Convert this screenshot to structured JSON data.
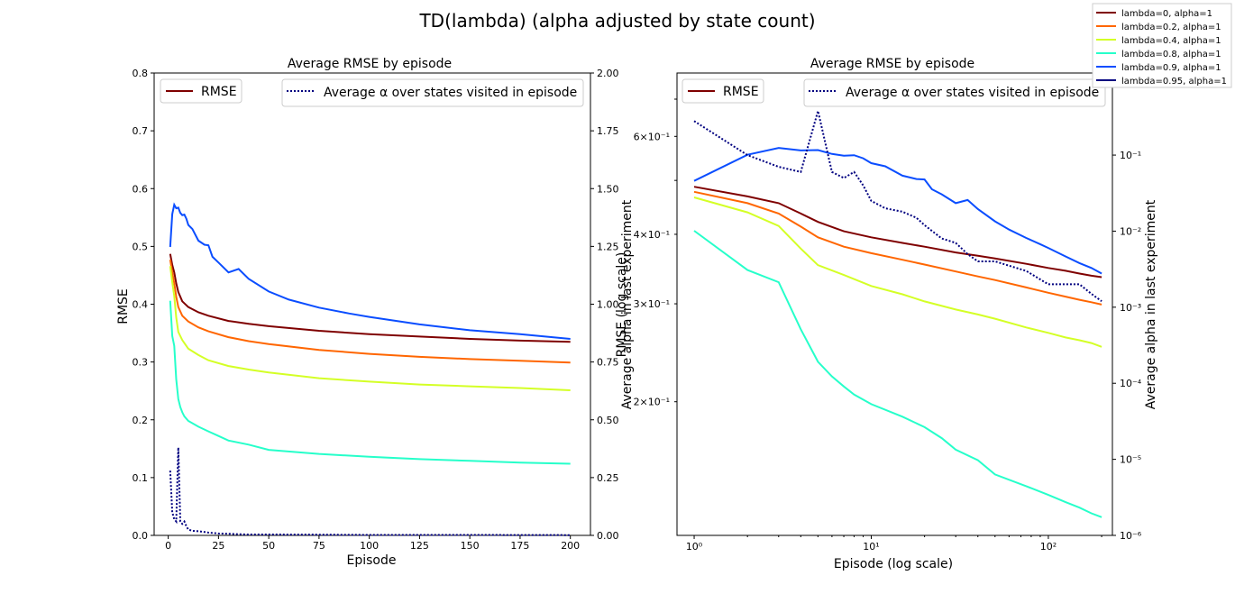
{
  "title": "TD(lambda) (alpha adjusted by state count)",
  "colors": {
    "rmse_legend_line": "#7f0000",
    "alpha_line": "#000080"
  },
  "global_legend": [
    {
      "label": "lambda=0, alpha=1",
      "color": "#7f0000"
    },
    {
      "label": "lambda=0.2, alpha=1",
      "color": "#ff6600"
    },
    {
      "label": "lambda=0.4, alpha=1",
      "color": "#d4ff26"
    },
    {
      "label": "lambda=0.8, alpha=1",
      "color": "#26ffca"
    },
    {
      "label": "lambda=0.9, alpha=1",
      "color": "#0a4dff"
    },
    {
      "label": "lambda=0.95, alpha=1",
      "color": "#000080"
    }
  ],
  "chart_data": [
    {
      "type": "line",
      "title": "Average RMSE by episode",
      "xlabel": "Episode",
      "ylabel": "RMSE",
      "y2label": "Average alpha in last experiment",
      "y2label_overlap": "RMSE (log scale)",
      "xlim": [
        -7,
        210
      ],
      "ylim": [
        0,
        0.8
      ],
      "y2lim": [
        0,
        2.0
      ],
      "xticks": [
        "0",
        "25",
        "50",
        "75",
        "100",
        "125",
        "150",
        "175",
        "200"
      ],
      "yticks": [
        "0.0",
        "0.1",
        "0.2",
        "0.3",
        "0.4",
        "0.5",
        "0.6",
        "0.7",
        "0.8"
      ],
      "y2ticks": [
        "0.00",
        "0.25",
        "0.50",
        "0.75",
        "1.00",
        "1.25",
        "1.50",
        "1.75",
        "2.00"
      ],
      "legend_rmse": "RMSE",
      "legend_alpha": "Average α over states visited in episode",
      "grid": false,
      "series": [
        {
          "name": "lambda=0, alpha=1",
          "color": "#7f0000",
          "x": [
            1,
            2,
            3,
            4,
            5,
            7,
            10,
            15,
            20,
            30,
            40,
            50,
            75,
            100,
            125,
            150,
            175,
            200
          ],
          "y": [
            0.487,
            0.468,
            0.455,
            0.436,
            0.421,
            0.405,
            0.395,
            0.386,
            0.38,
            0.371,
            0.366,
            0.362,
            0.354,
            0.348,
            0.344,
            0.34,
            0.337,
            0.335
          ]
        },
        {
          "name": "lambda=0.2, alpha=1",
          "color": "#ff6600",
          "x": [
            1,
            2,
            3,
            4,
            5,
            7,
            10,
            15,
            20,
            30,
            40,
            50,
            75,
            100,
            125,
            150,
            175,
            200
          ],
          "y": [
            0.477,
            0.455,
            0.436,
            0.413,
            0.395,
            0.38,
            0.37,
            0.36,
            0.353,
            0.343,
            0.336,
            0.331,
            0.321,
            0.314,
            0.309,
            0.305,
            0.302,
            0.299
          ]
        },
        {
          "name": "lambda=0.4, alpha=1",
          "color": "#d4ff26",
          "x": [
            1,
            2,
            3,
            4,
            5,
            7,
            10,
            15,
            20,
            30,
            40,
            50,
            75,
            100,
            125,
            150,
            175,
            200
          ],
          "y": [
            0.466,
            0.438,
            0.414,
            0.377,
            0.352,
            0.338,
            0.323,
            0.312,
            0.303,
            0.293,
            0.287,
            0.282,
            0.272,
            0.266,
            0.261,
            0.258,
            0.255,
            0.251
          ]
        },
        {
          "name": "lambda=0.8, alpha=1",
          "color": "#26ffca",
          "x": [
            1,
            2,
            3,
            4,
            5,
            6,
            7,
            8,
            10,
            15,
            20,
            25,
            30,
            40,
            50,
            75,
            100,
            125,
            150,
            175,
            200
          ],
          "y": [
            0.406,
            0.345,
            0.328,
            0.27,
            0.236,
            0.222,
            0.213,
            0.206,
            0.198,
            0.188,
            0.18,
            0.172,
            0.164,
            0.157,
            0.148,
            0.141,
            0.136,
            0.132,
            0.129,
            0.126,
            0.124
          ]
        },
        {
          "name": "lambda=0.9, alpha=1",
          "color": "#0a4dff",
          "x": [
            1,
            2,
            3,
            4,
            5,
            6,
            7,
            8,
            9,
            10,
            12,
            15,
            18,
            20,
            22,
            25,
            30,
            35,
            40,
            50,
            60,
            75,
            90,
            100,
            125,
            150,
            175,
            200
          ],
          "y": [
            0.499,
            0.556,
            0.572,
            0.566,
            0.567,
            0.558,
            0.554,
            0.555,
            0.548,
            0.537,
            0.53,
            0.51,
            0.503,
            0.502,
            0.482,
            0.472,
            0.455,
            0.461,
            0.444,
            0.422,
            0.408,
            0.394,
            0.384,
            0.378,
            0.365,
            0.355,
            0.348,
            0.34
          ]
        }
      ],
      "alpha_series": {
        "name": "Average α over states visited in episode",
        "color": "#000080",
        "x": [
          1,
          2,
          3,
          4,
          5,
          6,
          7,
          8,
          9,
          10,
          12,
          15,
          18,
          20,
          25,
          30,
          35,
          40,
          50,
          75,
          100,
          125,
          150,
          175,
          200
        ],
        "y": [
          0.28,
          0.1,
          0.07,
          0.06,
          0.38,
          0.06,
          0.05,
          0.06,
          0.04,
          0.025,
          0.02,
          0.018,
          0.015,
          0.012,
          0.008,
          0.007,
          0.005,
          0.004,
          0.004,
          0.003,
          0.002,
          0.002,
          0.002,
          0.0015,
          0.0012
        ]
      }
    },
    {
      "type": "line",
      "title": "Average RMSE by episode",
      "xlabel": "Episode (log scale)",
      "ylabel": "RMSE (log scale)",
      "y2label": "Average alpha in last experiment",
      "xscale": "log",
      "yscale": "log",
      "y2scale": "log",
      "xlim": [
        0.8,
        230
      ],
      "ylim": [
        0.115,
        0.78
      ],
      "y2lim": [
        1e-06,
        1.2
      ],
      "xticks": [
        "10⁰",
        "10¹",
        "10²"
      ],
      "yticks": [
        "2×10⁻¹",
        "3×10⁻¹",
        "4×10⁻¹",
        "6×10⁻¹"
      ],
      "y2ticks": [
        "10⁻⁶",
        "10⁻⁵",
        "10⁻⁴",
        "10⁻³",
        "10⁻²",
        "10⁻¹",
        "10⁰"
      ],
      "legend_rmse": "RMSE",
      "legend_alpha": "Average α over states visited in episode",
      "grid": false,
      "series": [
        {
          "name": "lambda=0, alpha=1",
          "color": "#7f0000",
          "x": [
            1,
            2,
            3,
            4,
            5,
            7,
            10,
            15,
            20,
            30,
            40,
            50,
            75,
            100,
            125,
            150,
            175,
            200
          ],
          "y": [
            0.487,
            0.468,
            0.455,
            0.436,
            0.421,
            0.405,
            0.395,
            0.386,
            0.38,
            0.371,
            0.366,
            0.362,
            0.354,
            0.348,
            0.344,
            0.34,
            0.337,
            0.335
          ]
        },
        {
          "name": "lambda=0.2, alpha=1",
          "color": "#ff6600",
          "x": [
            1,
            2,
            3,
            4,
            5,
            7,
            10,
            15,
            20,
            30,
            40,
            50,
            75,
            100,
            125,
            150,
            175,
            200
          ],
          "y": [
            0.477,
            0.455,
            0.436,
            0.413,
            0.395,
            0.38,
            0.37,
            0.36,
            0.353,
            0.343,
            0.336,
            0.331,
            0.321,
            0.314,
            0.309,
            0.305,
            0.302,
            0.299
          ]
        },
        {
          "name": "lambda=0.4, alpha=1",
          "color": "#d4ff26",
          "x": [
            1,
            2,
            3,
            4,
            5,
            7,
            10,
            15,
            20,
            30,
            40,
            50,
            75,
            100,
            125,
            150,
            175,
            200
          ],
          "y": [
            0.466,
            0.438,
            0.414,
            0.377,
            0.352,
            0.338,
            0.323,
            0.312,
            0.303,
            0.293,
            0.287,
            0.282,
            0.272,
            0.266,
            0.261,
            0.258,
            0.255,
            0.251
          ]
        },
        {
          "name": "lambda=0.8, alpha=1",
          "color": "#26ffca",
          "x": [
            1,
            2,
            3,
            4,
            5,
            6,
            7,
            8,
            10,
            15,
            20,
            25,
            30,
            40,
            50,
            75,
            100,
            125,
            150,
            175,
            200
          ],
          "y": [
            0.406,
            0.345,
            0.328,
            0.27,
            0.236,
            0.222,
            0.213,
            0.206,
            0.198,
            0.188,
            0.18,
            0.172,
            0.164,
            0.157,
            0.148,
            0.141,
            0.136,
            0.132,
            0.129,
            0.126,
            0.124
          ]
        },
        {
          "name": "lambda=0.9, alpha=1",
          "color": "#0a4dff",
          "x": [
            1,
            2,
            3,
            4,
            5,
            6,
            7,
            8,
            9,
            10,
            12,
            15,
            18,
            20,
            22,
            25,
            30,
            35,
            40,
            50,
            60,
            75,
            90,
            100,
            125,
            150,
            175,
            200
          ],
          "y": [
            0.499,
            0.556,
            0.572,
            0.566,
            0.567,
            0.558,
            0.554,
            0.555,
            0.548,
            0.537,
            0.53,
            0.51,
            0.503,
            0.502,
            0.482,
            0.472,
            0.455,
            0.461,
            0.444,
            0.422,
            0.408,
            0.394,
            0.384,
            0.378,
            0.365,
            0.355,
            0.348,
            0.34
          ]
        }
      ],
      "alpha_series": {
        "name": "Average α over states visited in episode",
        "color": "#000080",
        "x": [
          1,
          2,
          3,
          4,
          5,
          6,
          7,
          8,
          9,
          10,
          12,
          15,
          18,
          20,
          25,
          30,
          35,
          40,
          50,
          75,
          100,
          125,
          150,
          175,
          200
        ],
        "y": [
          0.28,
          0.1,
          0.07,
          0.06,
          0.38,
          0.06,
          0.05,
          0.06,
          0.04,
          0.025,
          0.02,
          0.018,
          0.015,
          0.012,
          0.008,
          0.007,
          0.005,
          0.004,
          0.004,
          0.003,
          0.002,
          0.002,
          0.002,
          0.0015,
          0.0012
        ]
      }
    }
  ]
}
